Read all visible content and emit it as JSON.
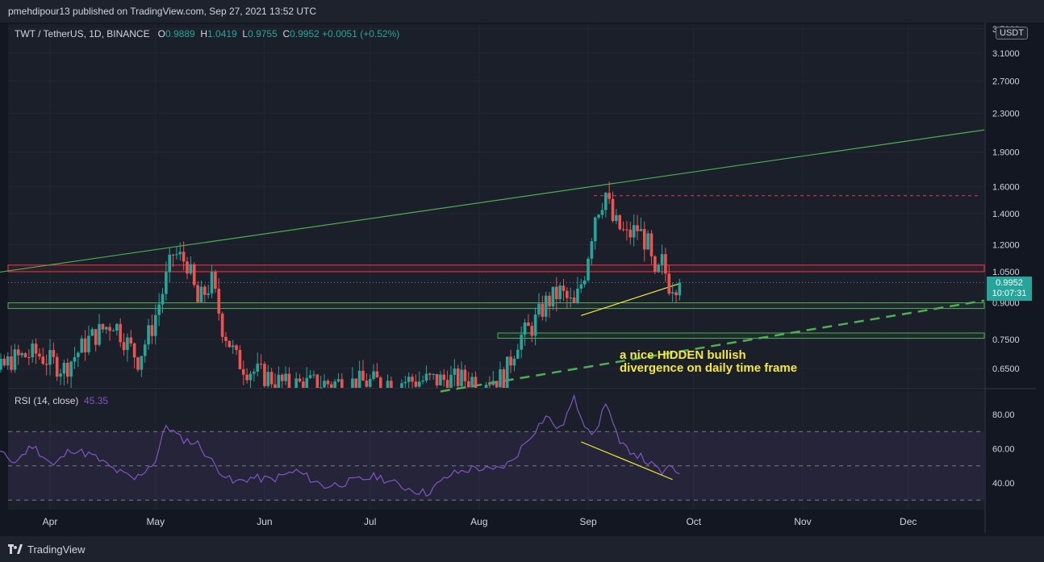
{
  "header": {
    "published_by": "pmehdipour13 published on TradingView.com, Sep 27, 2021 13:52 UTC"
  },
  "footer": {
    "brand": "TradingView"
  },
  "legend": {
    "symbol": "TWT / TetherUS, 1D, BINANCE",
    "o_label": "O",
    "o_value": "0.9889",
    "h_label": "H",
    "h_value": "1.0419",
    "l_label": "L",
    "l_value": "0.9755",
    "c_label": "C",
    "c_value": "0.9952",
    "change": "+0.0051 (+0.52%)"
  },
  "rsi": {
    "label": "RSI (14, close)",
    "value": "45.35"
  },
  "price_tag": {
    "price": "0.9952",
    "countdown": "10:07:31"
  },
  "currency": "USDT",
  "annotation": [
    "a nice HIDDEN bullish",
    "divergence on daily time frame"
  ],
  "colors": {
    "up": "#26a69a",
    "down": "#ef5350",
    "rsi": "#7e57c2",
    "annotation": "#f5e93b",
    "trend": "#4caf50",
    "resistance": "#f23645"
  },
  "chart_data": [
    {
      "type": "candlestick",
      "y_scale": "log",
      "x_ticks": [
        "Apr",
        "May",
        "Jun",
        "Jul",
        "Aug",
        "Sep",
        "Oct",
        "Nov",
        "Dec"
      ],
      "y_ticks": [
        "3.5000",
        "3.1000",
        "2.7000",
        "2.3000",
        "1.9000",
        "1.6000",
        "1.4000",
        "1.2000",
        "1.0500",
        "0.9000",
        "0.7500",
        "0.6500"
      ],
      "ylim": [
        0.58,
        3.5
      ],
      "levels": {
        "resistance_band": [
          1.05,
          1.085
        ],
        "support_band": [
          0.875,
          0.9
        ],
        "demand_zone": [
          0.755,
          0.775
        ],
        "dashed_resistance": 1.53,
        "last_price": 0.9952
      },
      "trendlines": [
        {
          "style": "solid",
          "color": "green",
          "from": [
            "Mar 7",
            1.02
          ],
          "to": [
            "Dec 31",
            2.12
          ]
        },
        {
          "style": "dashed",
          "color": "green",
          "from": [
            "Jul 21",
            0.58
          ],
          "to": [
            "Dec 31",
            0.91
          ]
        },
        {
          "style": "solid",
          "color": "yellow",
          "from": [
            "Aug 30",
            0.845
          ],
          "to": [
            "Sep 27",
            0.99
          ]
        }
      ],
      "price_path": [
        [
          "Mar 7",
          0.62
        ],
        [
          "Mar 14",
          0.6
        ],
        [
          "Mar 21",
          0.68
        ],
        [
          "Mar 28",
          0.7
        ],
        [
          "Apr 5",
          0.65
        ],
        [
          "Apr 12",
          0.75
        ],
        [
          "Apr 19",
          0.82
        ],
        [
          "Apr 26",
          0.68
        ],
        [
          "Apr 30",
          0.8
        ],
        [
          "May 3",
          0.95
        ],
        [
          "May 6",
          1.15
        ],
        [
          "May 10",
          1.1
        ],
        [
          "May 13",
          0.9
        ],
        [
          "May 17",
          1.0
        ],
        [
          "May 20",
          0.8
        ],
        [
          "May 24",
          0.68
        ],
        [
          "May 27",
          0.65
        ],
        [
          "Jun 7",
          0.6
        ],
        [
          "Aug 8",
          0.62
        ],
        [
          "Aug 12",
          0.75
        ],
        [
          "Aug 16",
          0.8
        ],
        [
          "Aug 20",
          0.9
        ],
        [
          "Aug 24",
          0.95
        ],
        [
          "Aug 28",
          0.88
        ],
        [
          "Aug 31",
          1.05
        ],
        [
          "Sep 3",
          1.4
        ],
        [
          "Sep 6",
          1.55
        ],
        [
          "Sep 8",
          1.35
        ],
        [
          "Sep 12",
          1.25
        ],
        [
          "Sep 15",
          1.3
        ],
        [
          "Sep 18",
          1.2
        ],
        [
          "Sep 20",
          1.0
        ],
        [
          "Sep 22",
          1.1
        ],
        [
          "Sep 24",
          0.99
        ],
        [
          "Sep 27",
          0.9952
        ]
      ]
    },
    {
      "type": "line",
      "name": "RSI (14, close)",
      "y_ticks": [
        "80.00",
        "60.00",
        "40.00"
      ],
      "ylim": [
        25,
        95
      ],
      "bands": [
        30,
        50,
        70
      ],
      "divergence_line": {
        "from": [
          "Aug 30",
          64
        ],
        "to": [
          "Sep 25",
          42
        ]
      },
      "values": [
        [
          "Mar 7",
          55
        ],
        [
          "Mar 12",
          44
        ],
        [
          "Mar 17",
          58
        ],
        [
          "Mar 22",
          52
        ],
        [
          "Mar 27",
          62
        ],
        [
          "Apr 2",
          50
        ],
        [
          "Apr 7",
          60
        ],
        [
          "Apr 13",
          56
        ],
        [
          "Apr 19",
          48
        ],
        [
          "Apr 25",
          42
        ],
        [
          "May 1",
          53
        ],
        [
          "May 4",
          74
        ],
        [
          "May 8",
          66
        ],
        [
          "May 13",
          63
        ],
        [
          "May 18",
          50
        ],
        [
          "May 23",
          40
        ],
        [
          "May 28",
          43
        ],
        [
          "Jun 3",
          42
        ],
        [
          "Jun 10",
          47
        ],
        [
          "Jun 18",
          38
        ],
        [
          "Jun 26",
          41
        ],
        [
          "Jul 3",
          44
        ],
        [
          "Jul 10",
          38
        ],
        [
          "Jul 17",
          34
        ],
        [
          "Jul 24",
          45
        ],
        [
          "Jul 31",
          49
        ],
        [
          "Aug 5",
          47
        ],
        [
          "Aug 10",
          52
        ],
        [
          "Aug 15",
          66
        ],
        [
          "Aug 20",
          79
        ],
        [
          "Aug 24",
          71
        ],
        [
          "Aug 28",
          89
        ],
        [
          "Aug 31",
          75
        ],
        [
          "Sep 3",
          68
        ],
        [
          "Sep 6",
          88
        ],
        [
          "Sep 10",
          62
        ],
        [
          "Sep 14",
          58
        ],
        [
          "Sep 18",
          52
        ],
        [
          "Sep 22",
          46
        ],
        [
          "Sep 25",
          49
        ],
        [
          "Sep 27",
          45.35
        ]
      ]
    }
  ]
}
